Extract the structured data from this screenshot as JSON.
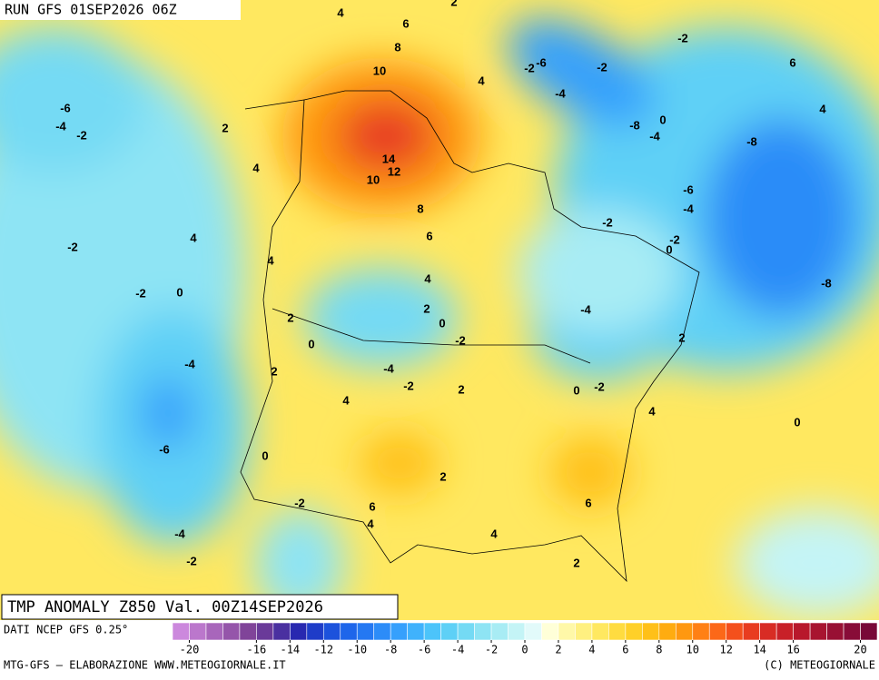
{
  "header": {
    "run": "RUN GFS 01SEP2026 06Z"
  },
  "map": {
    "title": "TMP ANOMALY Z850 Val. 00Z14SEP2026",
    "contour_labels": [
      4,
      6,
      8,
      10,
      4,
      -6,
      -4,
      -2,
      2,
      4,
      14,
      12,
      10,
      8,
      6,
      4,
      -2,
      4,
      4,
      -2,
      0,
      2,
      2,
      0,
      0,
      -2,
      -4,
      2,
      -4,
      -2,
      4,
      2,
      -6,
      0,
      2,
      -2,
      6,
      4,
      -4,
      4,
      -2,
      2,
      6,
      4,
      0,
      0,
      -2,
      2,
      -4,
      -2,
      0,
      -2,
      -6,
      -4,
      -8,
      -8,
      4,
      6,
      -2,
      0,
      -4,
      -8,
      -4,
      -2,
      -2,
      -6,
      2
    ]
  },
  "footer": {
    "source": "DATI NCEP GFS 0.25°",
    "credit": "MTG-GFS — ELABORAZIONE WWW.METEOGIORNALE.IT",
    "copyright": "(C) METEOGIORNALE"
  },
  "colorbar": {
    "range": [
      -21,
      21
    ],
    "colors": [
      "#cc88dd",
      "#bb77cc",
      "#a866bb",
      "#9555aa",
      "#804499",
      "#6a3a99",
      "#4a30a0",
      "#2828b0",
      "#1e3cc8",
      "#1c52dc",
      "#1e66ea",
      "#2478f2",
      "#2c8cf8",
      "#36a0fc",
      "#40b2fc",
      "#4cc4fa",
      "#5ed0f6",
      "#74daf4",
      "#8ee4f4",
      "#a8ecf4",
      "#c4f4f6",
      "#e2fafa",
      "#ffffd8",
      "#fff8a8",
      "#fff080",
      "#ffe860",
      "#ffdc40",
      "#ffd028",
      "#ffc018",
      "#ffac10",
      "#ff9810",
      "#ff8014",
      "#fc6818",
      "#f4501c",
      "#e83c20",
      "#d82c24",
      "#c82028",
      "#b8182c",
      "#a81430",
      "#981034",
      "#880c38",
      "#780838"
    ],
    "ticks": [
      -20,
      -16,
      -14,
      -12,
      -10,
      -8,
      -6,
      -4,
      -2,
      0,
      2,
      4,
      6,
      8,
      10,
      12,
      14,
      16,
      20
    ]
  }
}
